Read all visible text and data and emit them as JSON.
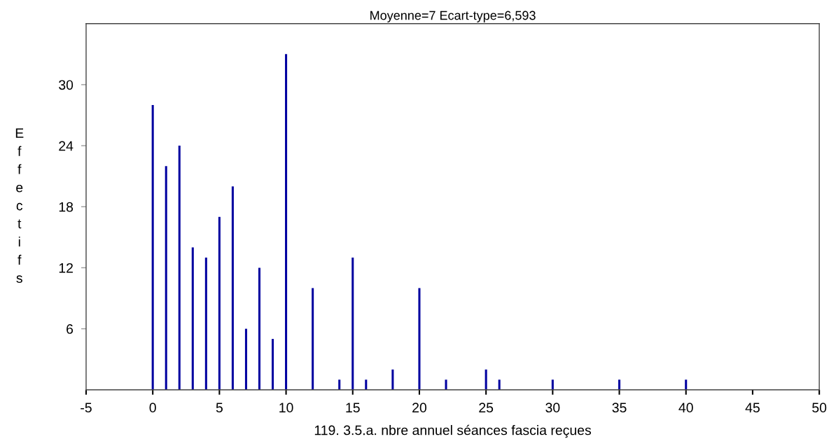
{
  "chart_data": {
    "type": "bar",
    "title": "Moyenne=7 Ecart-type=6,593",
    "xlabel": "119. 3.5.a. nbre annuel séances fascia reçues",
    "ylabel": "Effectifs",
    "x": [
      0,
      1,
      2,
      3,
      4,
      5,
      6,
      7,
      8,
      9,
      10,
      12,
      14,
      15,
      16,
      18,
      20,
      22,
      25,
      26,
      30,
      35,
      40
    ],
    "values": [
      28,
      22,
      24,
      14,
      13,
      17,
      20,
      6,
      12,
      5,
      33,
      10,
      1,
      13,
      1,
      2,
      10,
      1,
      2,
      1,
      1,
      1,
      1
    ],
    "color": "#0000a0",
    "xlim": [
      -5,
      50
    ],
    "xticks": [
      -5,
      0,
      5,
      10,
      15,
      20,
      25,
      30,
      35,
      40,
      45,
      50
    ],
    "ylim": [
      0,
      36
    ],
    "yticks": [
      6,
      12,
      18,
      24,
      30
    ]
  }
}
